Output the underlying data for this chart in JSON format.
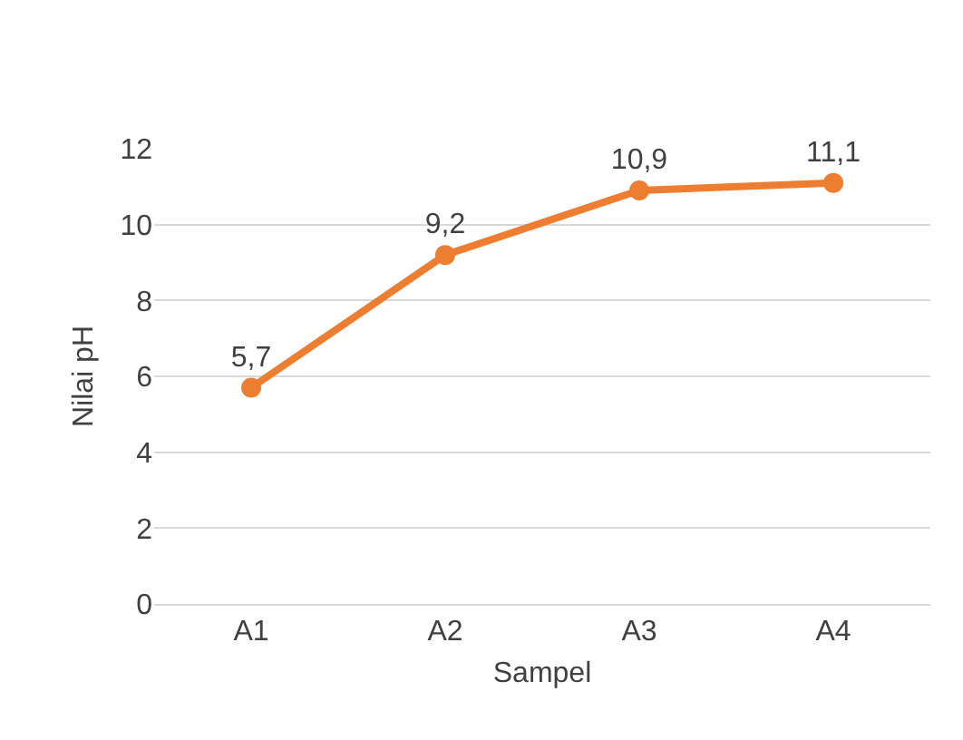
{
  "chart_data": {
    "type": "line",
    "xlabel": "Sampel",
    "ylabel": "Nilai pH",
    "categories": [
      "A1",
      "A2",
      "A3",
      "A4"
    ],
    "series": [
      {
        "color": "#ed7d31",
        "values": [
          5.7,
          9.2,
          10.9,
          11.1
        ],
        "value_labels": [
          "5,7",
          "9,2",
          "10,9",
          "11,1"
        ]
      }
    ],
    "ylim": [
      0,
      12
    ],
    "yticks": [
      0,
      2,
      4,
      6,
      8,
      10,
      12
    ],
    "grid": "y",
    "marker": "circle",
    "line_style": "solid"
  }
}
